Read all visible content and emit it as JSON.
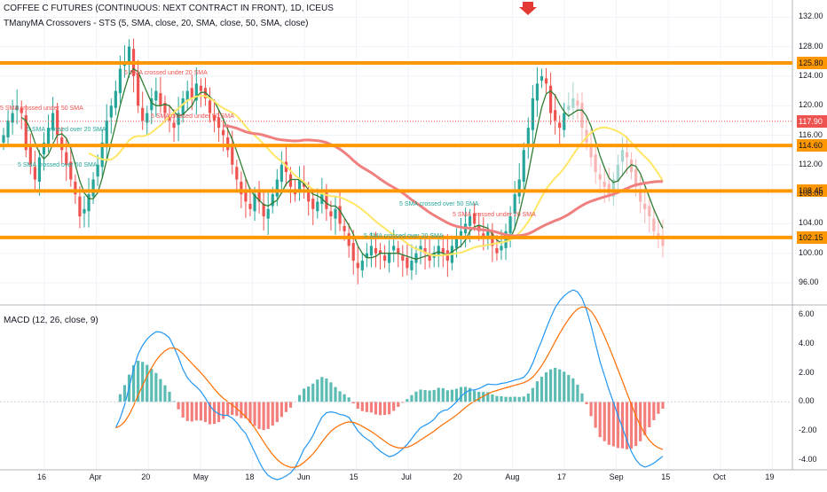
{
  "header": {
    "symbol_title": "COFFEE C FUTURES (CONTINUOUS: NEXT CONTRACT IN FRONT), 1D, ICEUS",
    "indicator_title": "TManyMA Crossovers - STS (5, SMA, close, 20, SMA, close, 50, SMA, close)",
    "macd_title": "MACD (12, 26, close, 9)"
  },
  "colors": {
    "up": "#26a69a",
    "down": "#ef5350",
    "sma5": "#2e7d32",
    "sma20": "#ffe766",
    "sma50": "#f08080",
    "support": "#ff9800",
    "macd": "#2196f3",
    "signal": "#ff6d00",
    "arrow": "#e53935"
  },
  "chart_data": [
    {
      "type": "candlestick",
      "title": "COFFEE C FUTURES (CONTINUOUS: NEXT CONTRACT IN FRONT), 1D, ICEUS",
      "y_ticks": [
        "132.00",
        "128.00",
        "124.00",
        "120.00",
        "116.00",
        "112.00",
        "108.00",
        "104.00",
        "100.00",
        "96.00"
      ],
      "ylim": [
        93,
        133
      ],
      "x_ticks": [
        "16",
        "Apr",
        "20",
        "May",
        "18",
        "Jun",
        "15",
        "Jul",
        "20",
        "Aug",
        "17",
        "Sep",
        "15",
        "Oct",
        "19"
      ],
      "current_price": "117.90",
      "horizontal_levels": [
        "125.80",
        "114.60",
        "108.45",
        "102.15"
      ],
      "annotations": [
        "5 SMA crossed under 20 SMA",
        "5 SMA crossed over 20 SMA",
        "5 SMA crossed under 50 SMA",
        "5 SMA crossed over 50 SMA"
      ],
      "close": [
        116,
        118,
        119,
        120,
        119,
        114,
        112,
        110,
        113,
        115,
        117,
        119,
        116,
        114,
        112,
        110,
        108,
        105,
        106,
        108,
        110,
        112,
        115,
        118,
        120,
        122,
        125,
        126,
        128,
        124,
        120,
        118,
        119,
        121,
        122,
        120,
        119,
        118,
        117,
        119,
        121,
        122,
        121,
        123,
        122,
        121,
        119,
        118,
        117,
        116,
        114,
        112,
        110,
        108,
        107,
        106,
        108,
        107,
        105,
        106,
        108,
        110,
        112,
        111,
        109,
        108,
        110,
        109,
        107,
        106,
        107,
        108,
        106,
        105,
        106,
        104,
        103,
        101,
        99,
        98,
        99,
        100,
        101,
        100,
        100,
        99,
        100,
        101,
        100,
        99,
        98,
        99,
        100,
        101,
        100,
        99,
        100,
        101,
        100,
        99,
        101,
        102,
        103,
        104,
        105,
        104,
        103,
        102,
        103,
        101,
        100,
        101,
        103,
        105,
        108,
        110,
        114,
        117,
        121,
        123,
        124,
        123,
        119,
        118,
        117,
        119,
        120,
        121,
        120,
        117,
        115,
        113,
        111,
        110,
        109,
        108,
        110,
        112,
        114,
        113,
        111,
        109,
        107,
        106,
        105,
        103,
        102,
        101
      ],
      "macd_panel": {
        "title": "MACD (12, 26, close, 9)",
        "y_ticks": [
          "6.00",
          "4.00",
          "2.00",
          "0.00",
          "-2.00",
          "-4.00"
        ],
        "ylim": [
          -4.2,
          6.2
        ]
      }
    }
  ]
}
